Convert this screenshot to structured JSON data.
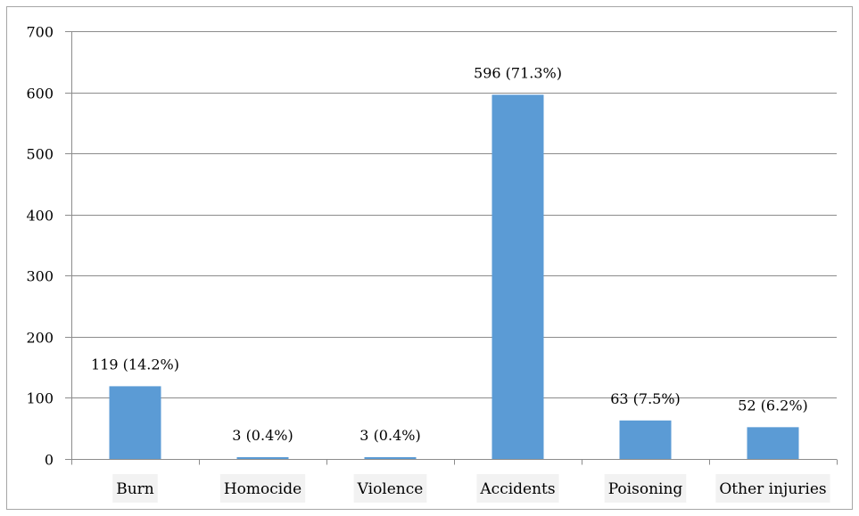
{
  "chart_data": {
    "type": "bar",
    "title": "",
    "xlabel": "",
    "ylabel": "",
    "categories": [
      "Burn",
      "Homocide",
      "Violence",
      "Accidents",
      "Poisoning",
      "Other injuries"
    ],
    "values": [
      119,
      3,
      3,
      596,
      63,
      52
    ],
    "data_labels": [
      "119 (14.2%)",
      "3 (0.4%)",
      "3 (0.4%)",
      "596 (71.3%)",
      "63 (7.5%)",
      "52 (6.2%)"
    ],
    "ylim": [
      0,
      700
    ],
    "yticks": [
      0,
      100,
      200,
      300,
      400,
      500,
      600,
      700
    ],
    "grid": true,
    "legend": "none",
    "bar_color": "#5b9bd5"
  }
}
